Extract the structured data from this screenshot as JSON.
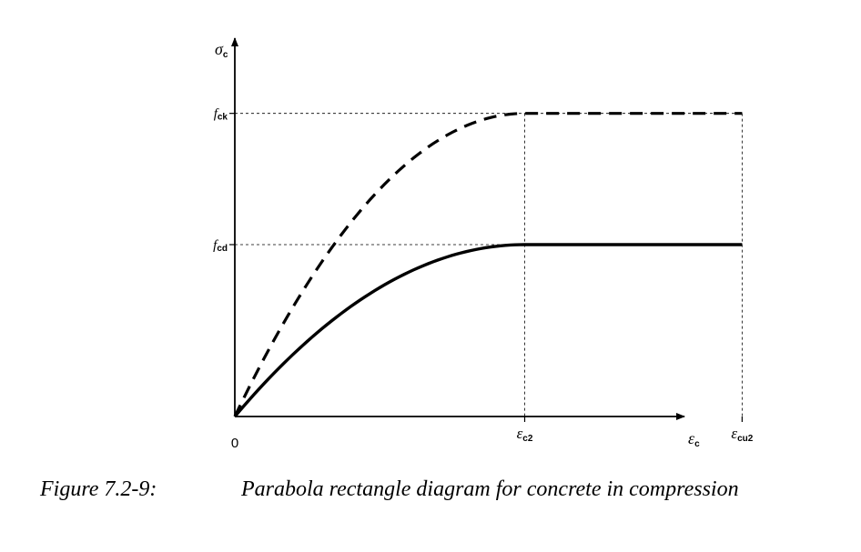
{
  "chart_data": {
    "type": "line",
    "title": "",
    "xlabel": {
      "symbol": "ε",
      "sub": "c"
    },
    "ylabel": {
      "symbol": "σ",
      "sub": "c"
    },
    "origin_label": "0",
    "x_ticks": [
      {
        "id": "ec2",
        "symbol": "ε",
        "sub": "c2",
        "value": 2.0
      },
      {
        "id": "ecu2",
        "symbol": "ε",
        "sub": "cu2",
        "value": 3.5
      }
    ],
    "y_ticks": [
      {
        "id": "fck",
        "symbol": "f",
        "sub": "ck",
        "value": 1.0
      },
      {
        "id": "fcd",
        "symbol": "f",
        "sub": "cd",
        "value": 0.567
      }
    ],
    "xlim": [
      0,
      4.0
    ],
    "ylim": [
      0,
      1.23
    ],
    "parabola_exponent": 2,
    "series": [
      {
        "id": "fck-curve",
        "style": "dashed",
        "peak": 1.0,
        "eps_c2": 2.0,
        "eps_cu2": 3.5
      },
      {
        "id": "fcd-curve",
        "style": "solid",
        "peak": 0.567,
        "eps_c2": 2.0,
        "eps_cu2": 3.5
      }
    ],
    "grid": false,
    "legend": "none"
  },
  "caption": {
    "number": "Figure 7.2-9:",
    "text": "Parabola rectangle diagram for concrete in compression"
  },
  "colors": {
    "line": "#000000",
    "background": "#ffffff"
  }
}
